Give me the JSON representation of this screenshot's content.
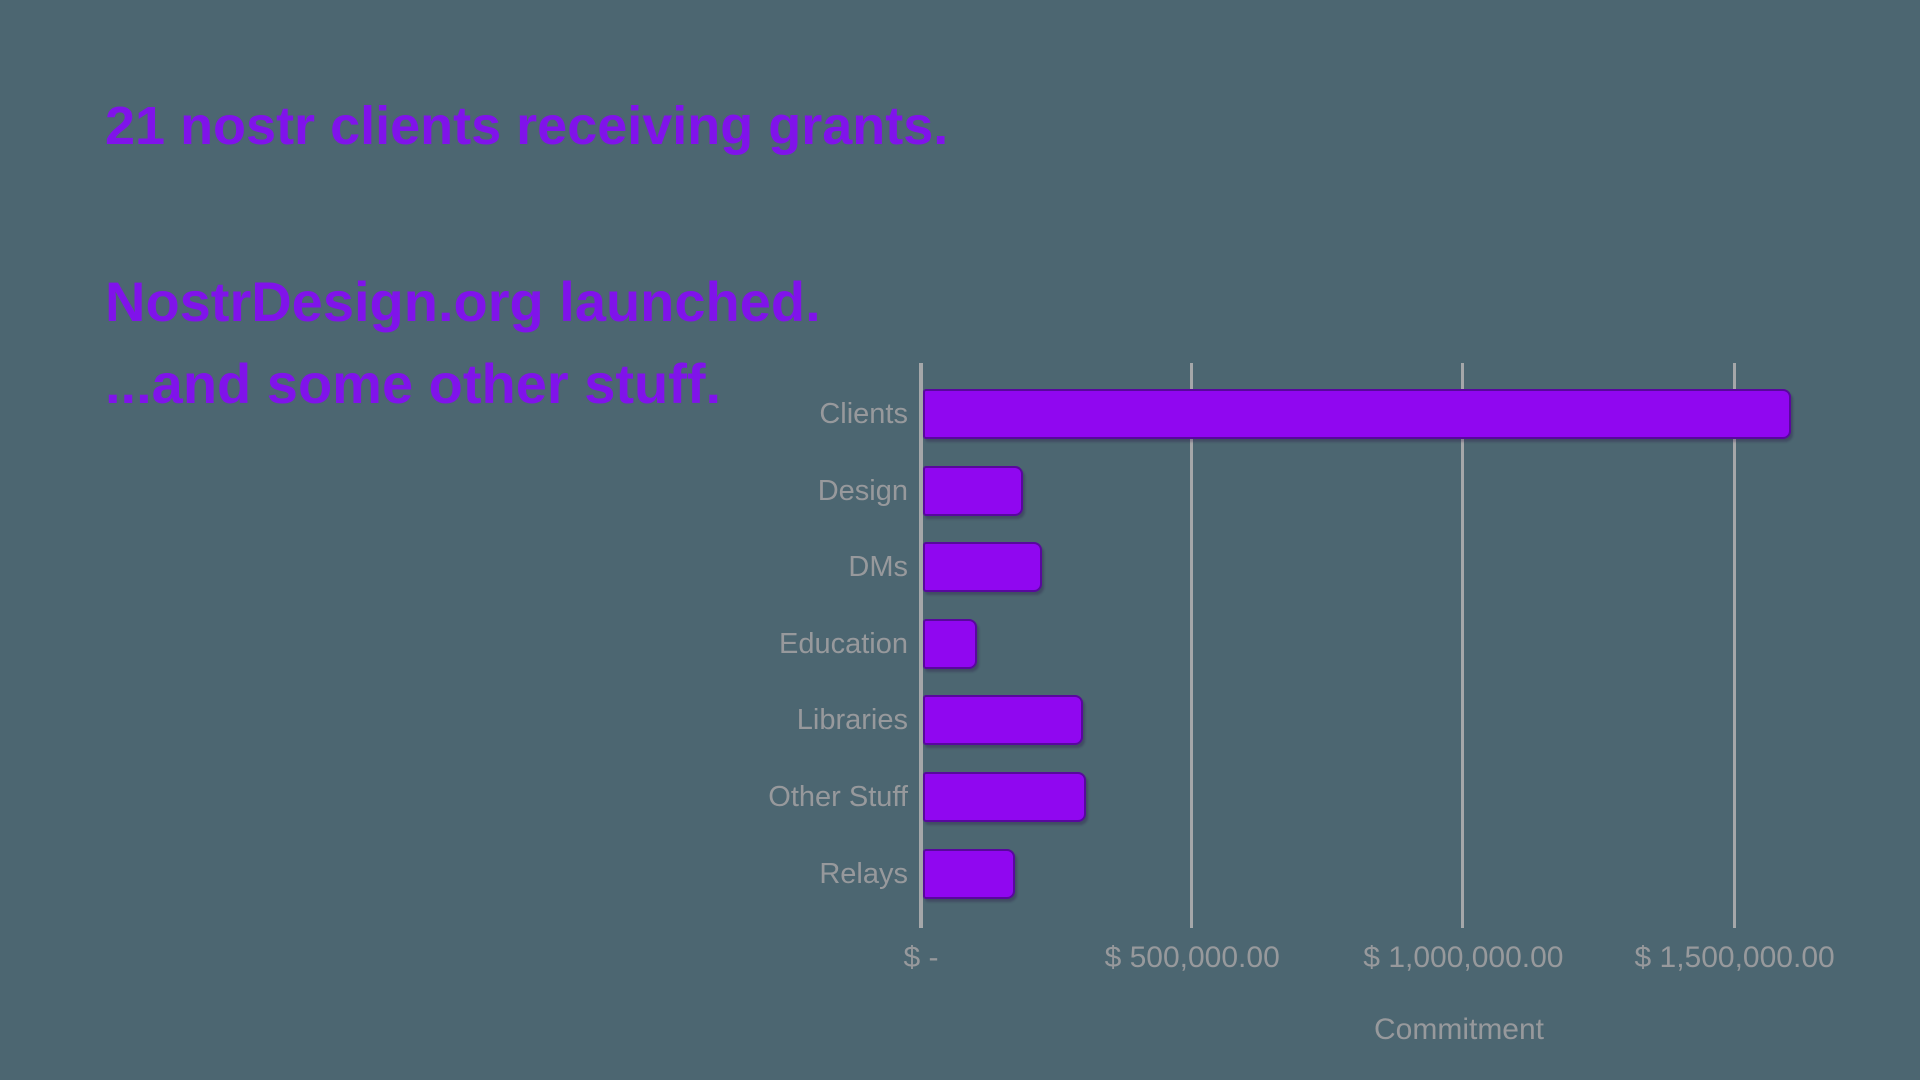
{
  "slide": {
    "headings": [
      {
        "id": "grants",
        "text": "21 nostr clients receiving grants."
      },
      {
        "id": "nostrdesign",
        "text": "NostrDesign.org launched."
      },
      {
        "id": "other-stuff",
        "text": "...and some other stuff."
      }
    ]
  },
  "chart_data": {
    "type": "bar",
    "orientation": "horizontal",
    "title": "",
    "categories": [
      "Clients",
      "Design",
      "DMs",
      "Education",
      "Libraries",
      "Other Stuff",
      "Relays"
    ],
    "values": [
      1600000,
      185000,
      220000,
      100000,
      295000,
      300000,
      170000
    ],
    "xlabel": "Commitment",
    "ylabel": "",
    "xlim": [
      0,
      2000000
    ],
    "x_ticks": [
      {
        "label": "$ -",
        "value": 0
      },
      {
        "label": "$ 500,000.00",
        "value": 500000
      },
      {
        "label": "$ 1,000,000.00",
        "value": 1000000
      },
      {
        "label": "$ 1,500,000.00",
        "value": 1500000
      }
    ],
    "legend": "none",
    "grid": "vertical"
  },
  "colors": {
    "background": "#4C6671",
    "heading": "#8013EA",
    "bar": "#9007F0",
    "bar_border": "rgba(70,10,130,0.75)",
    "label": "#97999C",
    "grid": "#A5A7A9"
  }
}
